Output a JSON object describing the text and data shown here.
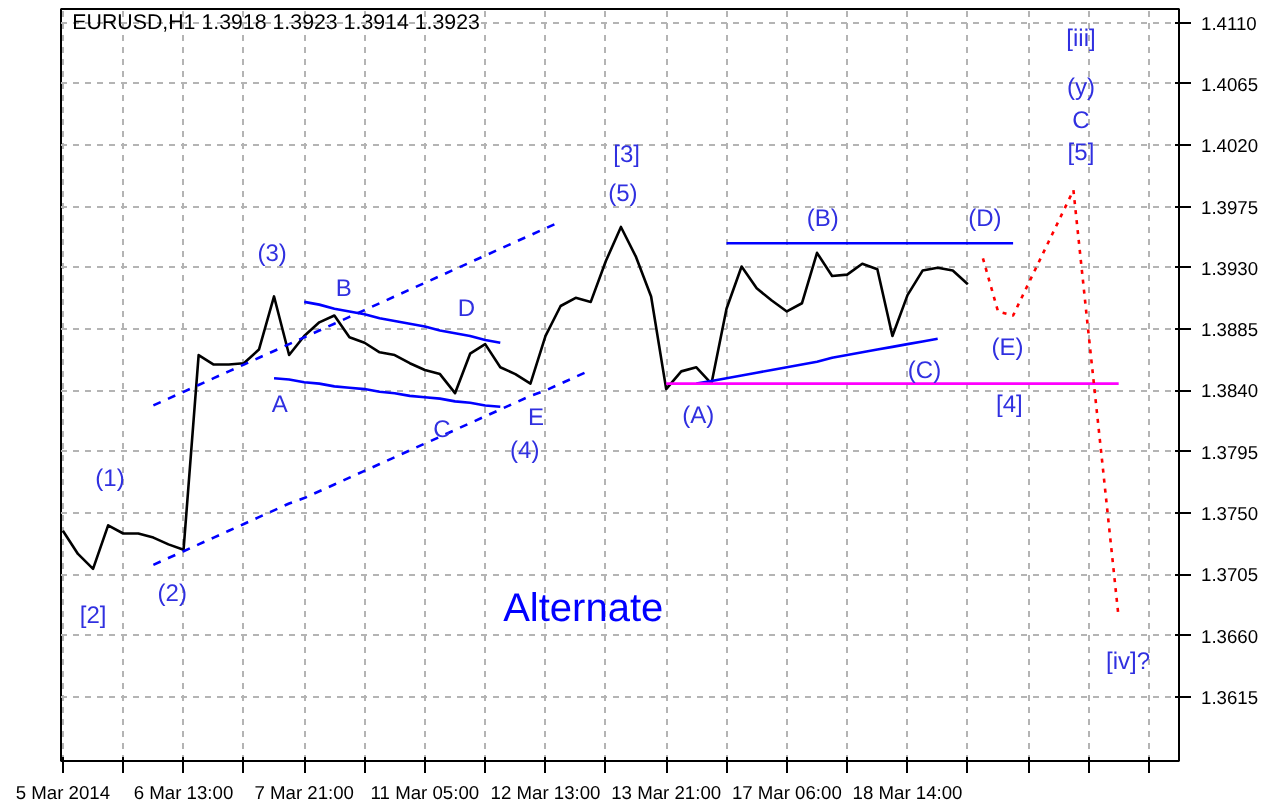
{
  "chart_data": {
    "type": "line",
    "title": "EURUSD,H1  1.3918 1.3923 1.3914 1.3923",
    "categories": [
      "5 Mar 2014",
      null,
      null,
      null,
      null,
      null,
      null,
      null,
      "6 Mar 13:00",
      null,
      null,
      null,
      null,
      null,
      null,
      null,
      "7 Mar 21:00",
      null,
      null,
      null,
      null,
      null,
      null,
      null,
      "11 Mar 05:00",
      null,
      null,
      null,
      null,
      null,
      null,
      null,
      "12 Mar 13:00",
      null,
      null,
      null,
      null,
      null,
      null,
      null,
      "13 Mar 21:00",
      null,
      null,
      null,
      null,
      null,
      null,
      null,
      "17 Mar 06:00",
      null,
      null,
      null,
      null,
      null,
      null,
      null,
      "18 Mar 14:00",
      null,
      null,
      null,
      null,
      null,
      null,
      null,
      null,
      null,
      null,
      null,
      null,
      null,
      null,
      null,
      null,
      null,
      null
    ],
    "ylim": [
      1.3568,
      1.412
    ],
    "yticks": [
      1.3615,
      {
        "value": 1.366,
        "label": "1.3660"
      },
      1.3705,
      {
        "value": 1.375,
        "label": "1.3750"
      },
      1.3795,
      {
        "value": 1.384,
        "label": "1.3840"
      },
      1.3885,
      {
        "value": 1.393,
        "label": "1.3930"
      },
      1.3975,
      {
        "value": 1.402,
        "label": "1.4020"
      },
      1.4065,
      {
        "value": 1.411,
        "label": "1.4110"
      }
    ],
    "grid": true,
    "marker": "none",
    "series": [
      {
        "color": "#000000",
        "line_style": "solid",
        "values": [
          1.3737,
          1.372,
          1.3709,
          1.3741,
          1.3735,
          1.3735,
          1.3732,
          1.3727,
          1.3723,
          1.3866,
          1.3859,
          1.3859,
          1.386,
          1.387,
          1.3909,
          1.3866,
          1.388,
          1.389,
          1.3895,
          1.3879,
          1.3875,
          1.3868,
          1.3866,
          1.386,
          1.3855,
          1.3852,
          1.3838,
          1.3867,
          1.3874,
          1.3857,
          1.3852,
          1.3845,
          1.388,
          1.3902,
          1.3908,
          1.3905,
          1.3935,
          1.396,
          1.3938,
          1.3909,
          1.3841,
          1.3854,
          1.3857,
          1.3845,
          1.39,
          1.3931,
          1.3915,
          1.3906,
          1.3898,
          1.3904,
          1.3941,
          1.3924,
          1.3925,
          1.3933,
          1.3929,
          1.388,
          1.391,
          1.3928,
          1.393,
          1.3928,
          1.3918,
          null,
          null,
          null,
          null,
          null,
          null,
          null,
          null,
          null,
          null,
          null,
          null,
          null,
          null
        ]
      },
      {
        "color": "#0000ff",
        "line_style": "dashed",
        "values": [
          null,
          null,
          null,
          null,
          null,
          null,
          1.3712,
          1.3717,
          1.3722,
          1.3727,
          1.3732,
          1.3737,
          1.3742,
          1.3747,
          1.3752,
          1.3757,
          1.3761,
          1.3766,
          1.3771,
          1.3776,
          1.3781,
          1.3786,
          1.3791,
          1.3796,
          1.3801,
          1.3806,
          1.3811,
          1.3816,
          1.3821,
          1.3826,
          1.3831,
          1.3836,
          1.384,
          1.3845,
          1.385,
          1.3855,
          null,
          null,
          null,
          null,
          null,
          null,
          null,
          null,
          null,
          null,
          null,
          null,
          null,
          null,
          null,
          null,
          null,
          null,
          null,
          null,
          null,
          null,
          null,
          null,
          null,
          null,
          null,
          null,
          null,
          null,
          null,
          null,
          null,
          null,
          null,
          null,
          null,
          null,
          null
        ]
      },
      {
        "color": "#0000ff",
        "line_style": "dashed",
        "values": [
          null,
          null,
          null,
          null,
          null,
          null,
          1.3829,
          1.3834,
          1.3839,
          1.3844,
          1.3849,
          1.3854,
          1.3859,
          1.3864,
          1.3869,
          1.3874,
          1.3879,
          1.3884,
          1.3889,
          1.3894,
          1.3899,
          1.3904,
          1.3909,
          1.3914,
          1.3919,
          1.3924,
          1.3929,
          1.3934,
          1.3939,
          1.3944,
          1.3949,
          1.3954,
          1.3959,
          1.3964,
          null,
          null,
          null,
          null,
          null,
          null,
          null,
          null,
          null,
          null,
          null,
          null,
          null,
          null,
          null,
          null,
          null,
          null,
          null,
          null,
          null,
          null,
          null,
          null,
          null,
          null,
          null,
          null,
          null,
          null,
          null,
          null,
          null,
          null,
          null,
          null,
          null,
          null,
          null,
          null,
          null
        ]
      },
      {
        "color": "#0000ff",
        "line_style": "solid",
        "values": [
          null,
          null,
          null,
          null,
          null,
          null,
          null,
          null,
          null,
          null,
          null,
          null,
          null,
          null,
          null,
          null,
          1.3905,
          1.3903,
          1.39,
          1.3898,
          1.3896,
          1.3893,
          1.3891,
          1.3889,
          1.3887,
          1.3884,
          1.3882,
          1.388,
          1.3877,
          1.3875,
          null,
          null,
          null,
          null,
          null,
          null,
          null,
          null,
          null,
          null,
          null,
          null,
          null,
          null,
          null,
          null,
          null,
          null,
          null,
          null,
          null,
          null,
          null,
          null,
          null,
          null,
          null,
          null,
          null,
          null,
          null,
          null,
          null,
          null,
          null,
          null,
          null,
          null,
          null,
          null,
          null,
          null,
          null,
          null,
          null
        ]
      },
      {
        "color": "#0000ff",
        "line_style": "solid",
        "values": [
          null,
          null,
          null,
          null,
          null,
          null,
          null,
          null,
          null,
          null,
          null,
          null,
          null,
          null,
          1.3849,
          1.3848,
          1.3846,
          1.3845,
          1.3843,
          1.3842,
          1.3841,
          1.3839,
          1.3838,
          1.3836,
          1.3835,
          1.3834,
          1.3832,
          1.3831,
          1.3829,
          1.3828,
          null,
          null,
          null,
          null,
          null,
          null,
          null,
          null,
          null,
          null,
          null,
          null,
          null,
          null,
          null,
          null,
          null,
          null,
          null,
          null,
          null,
          null,
          null,
          null,
          null,
          null,
          null,
          null,
          null,
          null,
          null,
          null,
          null,
          null,
          null,
          null,
          null,
          null,
          null,
          null,
          null,
          null,
          null,
          null,
          null
        ]
      },
      {
        "color": "#0000ff",
        "line_style": "solid",
        "values": [
          null,
          null,
          null,
          null,
          null,
          null,
          null,
          null,
          null,
          null,
          null,
          null,
          null,
          null,
          null,
          null,
          null,
          null,
          null,
          null,
          null,
          null,
          null,
          null,
          null,
          null,
          null,
          null,
          null,
          null,
          null,
          null,
          null,
          null,
          null,
          null,
          null,
          null,
          null,
          null,
          null,
          null,
          null,
          null,
          1.3948,
          1.3948,
          1.3948,
          1.3948,
          1.3948,
          1.3948,
          1.3948,
          1.3948,
          1.3948,
          1.3948,
          1.3948,
          1.3948,
          1.3948,
          1.3948,
          1.3948,
          1.3948,
          1.3948,
          1.3948,
          1.3948,
          1.3948,
          null,
          null,
          null,
          null,
          null,
          null,
          null,
          null,
          null,
          null,
          null
        ]
      },
      {
        "color": "#0000ff",
        "line_style": "solid",
        "values": [
          null,
          null,
          null,
          null,
          null,
          null,
          null,
          null,
          null,
          null,
          null,
          null,
          null,
          null,
          null,
          null,
          null,
          null,
          null,
          null,
          null,
          null,
          null,
          null,
          null,
          null,
          null,
          null,
          null,
          null,
          null,
          null,
          null,
          null,
          null,
          null,
          null,
          null,
          null,
          null,
          null,
          null,
          1.3845,
          1.3847,
          1.3849,
          1.3851,
          1.3853,
          1.3855,
          1.3857,
          1.3859,
          1.3861,
          1.3864,
          1.3866,
          1.3868,
          1.387,
          1.3872,
          1.3874,
          1.3876,
          1.3878,
          null,
          null,
          null,
          null,
          null,
          null,
          null,
          null,
          null,
          null,
          null,
          null,
          null,
          null,
          null,
          null
        ]
      },
      {
        "color": "#ff00ff",
        "line_style": "solid",
        "values": [
          null,
          null,
          null,
          null,
          null,
          null,
          null,
          null,
          null,
          null,
          null,
          null,
          null,
          null,
          null,
          null,
          null,
          null,
          null,
          null,
          null,
          null,
          null,
          null,
          null,
          null,
          null,
          null,
          null,
          null,
          null,
          null,
          null,
          null,
          null,
          null,
          null,
          null,
          null,
          null,
          1.3845,
          1.3845,
          1.3845,
          1.3845,
          1.3845,
          1.3845,
          1.3845,
          1.3845,
          1.3845,
          1.3845,
          1.3845,
          1.3845,
          1.3845,
          1.3845,
          1.3845,
          1.3845,
          1.3845,
          1.3845,
          1.3845,
          1.3845,
          1.3845,
          1.3845,
          1.3845,
          1.3845,
          1.3845,
          1.3845,
          1.3845,
          1.3845,
          1.3845,
          1.3845,
          1.3845,
          null,
          null,
          null,
          null
        ]
      },
      {
        "color": "#ff0000",
        "line_style": "dotted",
        "values": [
          null,
          null,
          null,
          null,
          null,
          null,
          null,
          null,
          null,
          null,
          null,
          null,
          null,
          null,
          null,
          null,
          null,
          null,
          null,
          null,
          null,
          null,
          null,
          null,
          null,
          null,
          null,
          null,
          null,
          null,
          null,
          null,
          null,
          null,
          null,
          null,
          null,
          null,
          null,
          null,
          null,
          null,
          null,
          null,
          null,
          null,
          null,
          null,
          null,
          null,
          null,
          null,
          null,
          null,
          null,
          null,
          null,
          null,
          null,
          null,
          null,
          1.3937,
          1.3898,
          1.3895,
          1.3918,
          1.3941,
          1.3964,
          1.3987,
          1.3882,
          1.3778,
          1.3673,
          null,
          null,
          null,
          null
        ]
      }
    ],
    "annotations": [
      "(1)",
      "[2]",
      "(2)",
      "(3)",
      "A",
      "B",
      "C",
      "D",
      "E",
      "(4)",
      "[3]",
      "(5)",
      "(A)",
      "(B)",
      "(C)",
      "(D)",
      "(E)",
      "[4]",
      "[5]",
      "C",
      "(y)",
      "[iii]",
      "[iv]?",
      "Alternate"
    ]
  }
}
